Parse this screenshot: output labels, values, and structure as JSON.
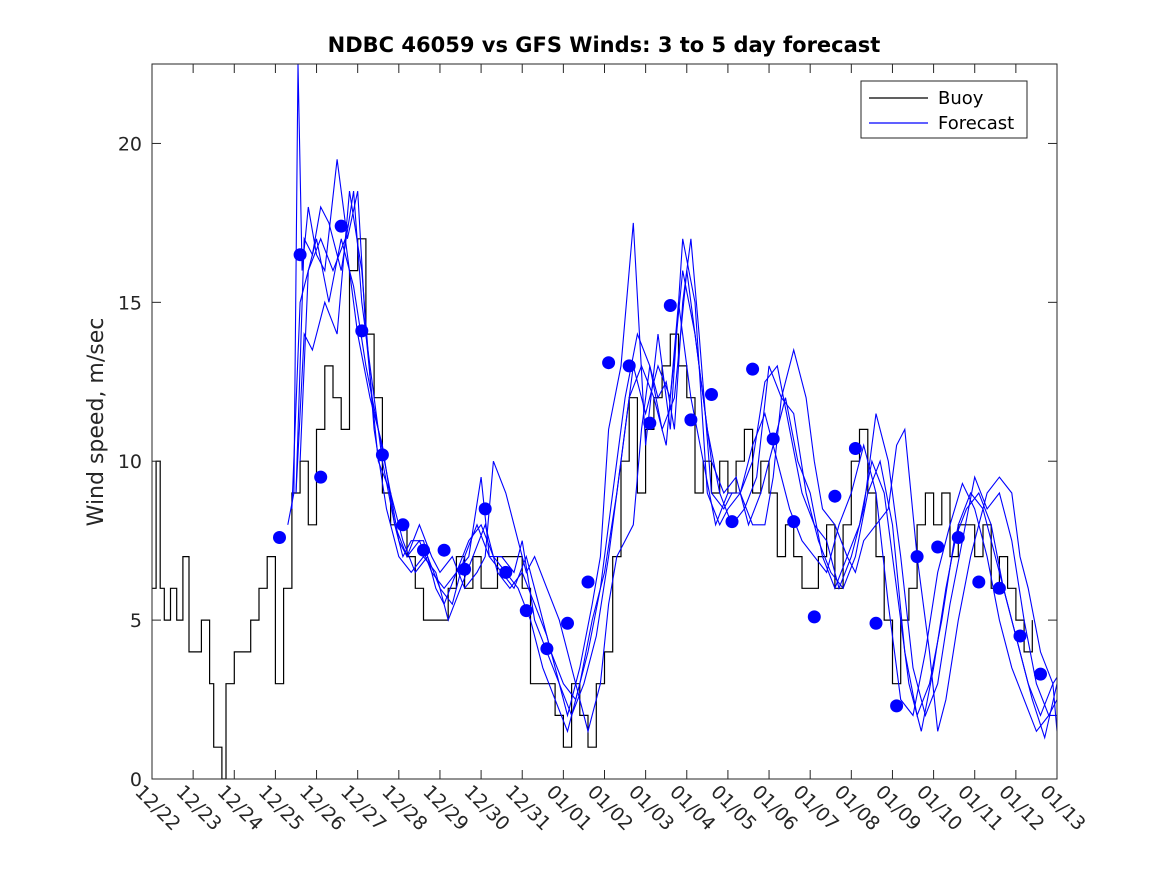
{
  "chart_data": {
    "type": "line",
    "title": "NDBC 46059 vs GFS Winds: 3 to 5 day forecast",
    "xlabel": "",
    "ylabel": "Wind speed, m/sec",
    "xlim": [
      0,
      22
    ],
    "ylim": [
      0,
      22.5
    ],
    "x_tick_labels": [
      "12/22",
      "12/23",
      "12/24",
      "12/25",
      "12/26",
      "12/27",
      "12/28",
      "12/29",
      "12/30",
      "12/31",
      "01/01",
      "01/02",
      "01/03",
      "01/04",
      "01/05",
      "01/06",
      "01/07",
      "01/08",
      "01/09",
      "01/10",
      "01/11",
      "01/12",
      "01/13"
    ],
    "y_ticks": [
      0,
      5,
      10,
      15,
      20
    ],
    "legend": {
      "position": "top-right",
      "entries": [
        "Buoy",
        "Forecast"
      ]
    },
    "colors": {
      "buoy": "#000000",
      "forecast": "#0000ff",
      "markers": "#0000ff"
    },
    "grid": false,
    "buoy_series": {
      "name": "Buoy",
      "x": [
        0,
        0.1,
        0.2,
        0.3,
        0.45,
        0.6,
        0.75,
        0.9,
        1.0,
        1.2,
        1.4,
        1.5,
        1.7,
        1.8,
        2.0,
        2.2,
        2.4,
        2.6,
        2.8,
        3.0,
        3.2,
        3.4,
        3.6,
        3.8,
        4.0,
        4.2,
        4.4,
        4.6,
        4.8,
        5.0,
        5.2,
        5.4,
        5.6,
        5.8,
        6.0,
        6.2,
        6.4,
        6.6,
        6.8,
        7.0,
        7.2,
        7.4,
        7.6,
        7.8,
        8.0,
        8.2,
        8.4,
        8.6,
        8.8,
        9.0,
        9.2,
        9.4,
        9.6,
        9.8,
        10.0,
        10.2,
        10.4,
        10.6,
        10.8,
        11.0,
        11.2,
        11.4,
        11.6,
        11.8,
        12.0,
        12.2,
        12.4,
        12.6,
        12.8,
        13.0,
        13.2,
        13.4,
        13.6,
        13.8,
        14.0,
        14.2,
        14.4,
        14.6,
        14.8,
        15.0,
        15.2,
        15.4,
        15.6,
        15.8,
        16.0,
        16.2,
        16.4,
        16.6,
        16.8,
        17.0,
        17.2,
        17.4,
        17.6,
        17.8,
        18.0,
        18.2,
        18.4,
        18.6,
        18.8,
        19.0,
        19.2,
        19.4,
        19.6,
        19.8,
        20.0,
        20.2,
        20.4,
        20.6,
        20.8,
        21.0,
        21.2,
        21.4
      ],
      "y": [
        6,
        10,
        6,
        5,
        6,
        5,
        7,
        4,
        4,
        5,
        3,
        1,
        0,
        3,
        4,
        4,
        5,
        6,
        7,
        3,
        6,
        9,
        10,
        8,
        11,
        13,
        12,
        11,
        16,
        17,
        14,
        12,
        9,
        8,
        8,
        7,
        6,
        5,
        5,
        5,
        6,
        7,
        6,
        7,
        6,
        6,
        7,
        7,
        7,
        6,
        3,
        3,
        3,
        2,
        1,
        3,
        2,
        1,
        3,
        4,
        7,
        10,
        12,
        9,
        11,
        12,
        13,
        14,
        13,
        12,
        9,
        10,
        9,
        10,
        9,
        10,
        11,
        9,
        10,
        9,
        7,
        8,
        7,
        6,
        6,
        7,
        8,
        6,
        8,
        10,
        11,
        9,
        7,
        5,
        3,
        5,
        6,
        8,
        9,
        8,
        9,
        7,
        8,
        8,
        7,
        8,
        6,
        7,
        6,
        5,
        4,
        5
      ]
    },
    "forecast_series": [
      {
        "name": "Forecast",
        "x": [
          3.3,
          3.45,
          3.55,
          3.65,
          3.8,
          4.0,
          4.2,
          4.5,
          4.75,
          5.0,
          5.2,
          5.5,
          5.8,
          6.0,
          6.2,
          6.5,
          6.8,
          7.0,
          7.3,
          7.6,
          7.9,
          8.1,
          8.3,
          8.6,
          8.9,
          9.1,
          9.3,
          9.6,
          9.9,
          10.1,
          10.3,
          10.6,
          10.9,
          11.1,
          11.3,
          11.5,
          11.7,
          11.9,
          12.1,
          12.3,
          12.5,
          12.7,
          12.9,
          13.1,
          13.3,
          13.6,
          13.9,
          14.1,
          14.3,
          14.6,
          14.9,
          15.1,
          15.3,
          15.6,
          15.9,
          16.1,
          16.3,
          16.6,
          16.9,
          17.1,
          17.3,
          17.6,
          17.9,
          18.1,
          18.3,
          18.6,
          18.9,
          19.1,
          19.3,
          19.6,
          19.9,
          20.1,
          20.3,
          20.6,
          20.9,
          21.1,
          21.3,
          21.6,
          21.9,
          22.0
        ],
        "y": [
          8,
          9,
          22.5,
          16,
          18,
          16.5,
          16,
          19.5,
          17,
          18.5,
          14,
          10,
          9,
          7.5,
          7,
          8,
          7,
          6.5,
          7,
          6,
          6.5,
          7,
          10,
          9,
          7.5,
          6.5,
          7,
          6,
          5,
          4,
          3,
          1.5,
          3,
          5.5,
          7,
          7.5,
          8,
          11,
          13,
          12,
          12.5,
          11,
          15,
          17,
          14,
          9,
          8.5,
          9,
          9,
          8,
          8,
          9.5,
          12,
          13.5,
          12,
          10,
          8.5,
          8,
          7,
          6.5,
          7.5,
          8,
          8.5,
          10.5,
          11,
          7,
          4,
          1.5,
          2.5,
          5,
          7,
          8,
          9,
          9.5,
          9,
          7,
          6,
          4,
          3,
          1.5
        ]
      },
      {
        "name": "Forecast",
        "x": [
          3.5,
          3.7,
          3.9,
          4.1,
          4.3,
          4.6,
          4.9,
          5.1,
          5.3,
          5.6,
          5.9,
          6.1,
          6.3,
          6.6,
          6.9,
          7.1,
          7.4,
          7.7,
          8.0,
          8.2,
          8.5,
          8.8,
          9.0,
          9.3,
          9.6,
          9.9,
          10.1,
          10.4,
          10.7,
          10.9,
          11.1,
          11.4,
          11.7,
          12.0,
          12.3,
          12.6,
          12.9,
          13.2,
          13.5,
          13.8,
          14.0,
          14.3,
          14.6,
          14.9,
          15.2,
          15.5,
          15.8,
          16.1,
          16.4,
          16.7,
          17.0,
          17.3,
          17.6,
          17.9,
          18.2,
          18.5,
          18.8,
          19.1,
          19.4,
          19.7,
          20.0,
          20.3,
          20.6,
          20.9,
          21.2,
          21.5,
          21.8,
          22.0
        ],
        "y": [
          9,
          17,
          16.5,
          18,
          17.5,
          16,
          18.5,
          15,
          13,
          10,
          8,
          7,
          7.5,
          7.5,
          6,
          5.5,
          6.5,
          7,
          9.5,
          7,
          7,
          6.5,
          7.5,
          5,
          4,
          3,
          2,
          3.5,
          5.5,
          7,
          11,
          13,
          17.5,
          10.5,
          14,
          11,
          17,
          15,
          9,
          8,
          8.5,
          9,
          10,
          12.5,
          13,
          11,
          9,
          8,
          7.5,
          6,
          7,
          8.5,
          11.5,
          10,
          7,
          3.5,
          2,
          3,
          5.5,
          7.5,
          9.5,
          8.5,
          9,
          7.5,
          5,
          3,
          2,
          2
        ]
      },
      {
        "name": "Forecast",
        "x": [
          3.6,
          3.8,
          4.0,
          4.3,
          4.6,
          4.9,
          5.2,
          5.5,
          5.8,
          6.1,
          6.4,
          6.7,
          7.0,
          7.3,
          7.6,
          7.9,
          8.2,
          8.5,
          8.8,
          9.1,
          9.4,
          9.7,
          10.0,
          10.3,
          10.6,
          10.9,
          11.2,
          11.5,
          11.8,
          12.1,
          12.4,
          12.7,
          13.0,
          13.3,
          13.6,
          13.9,
          14.2,
          14.5,
          14.8,
          15.1,
          15.4,
          15.7,
          16.0,
          16.3,
          16.6,
          16.9,
          17.2,
          17.5,
          17.8,
          18.1,
          18.4,
          18.7,
          19.0,
          19.3,
          19.6,
          19.9,
          20.2,
          20.5,
          20.8,
          21.1,
          21.4,
          21.7,
          22.0
        ],
        "y": [
          10,
          16,
          17,
          15,
          17,
          15.5,
          13,
          11,
          9,
          7.5,
          6.5,
          7,
          6,
          5.5,
          7,
          8,
          7,
          6.5,
          6,
          7,
          5.5,
          4,
          3,
          2.5,
          4,
          6,
          9,
          12,
          14,
          13,
          11,
          12,
          16,
          13,
          10,
          9,
          9.5,
          8,
          9,
          10.5,
          12,
          10,
          9,
          7,
          6,
          7,
          8,
          10,
          9,
          6,
          3,
          1.5,
          3.5,
          6,
          8,
          9,
          8.5,
          7,
          5.5,
          4,
          2.5,
          1.3,
          3
        ]
      },
      {
        "name": "Forecast",
        "x": [
          3.4,
          3.6,
          3.8,
          4.1,
          4.4,
          4.7,
          5.0,
          5.3,
          5.6,
          5.9,
          6.2,
          6.5,
          6.8,
          7.1,
          7.4,
          7.7,
          8.0,
          8.3,
          8.6,
          8.9,
          9.2,
          9.5,
          9.8,
          10.1,
          10.4,
          10.7,
          11.0,
          11.3,
          11.6,
          11.9,
          12.2,
          12.5,
          12.8,
          13.1,
          13.4,
          13.7,
          14.0,
          14.3,
          14.6,
          14.9,
          15.2,
          15.5,
          15.8,
          16.1,
          16.4,
          16.7,
          17.0,
          17.3,
          17.6,
          17.9,
          18.2,
          18.5,
          18.8,
          19.1,
          19.4,
          19.7,
          20.0,
          20.3,
          20.6,
          20.9,
          21.2,
          21.5,
          21.8,
          22.0
        ],
        "y": [
          8.5,
          15,
          16,
          17,
          16,
          17,
          14,
          12,
          10.5,
          8,
          7,
          7.5,
          6.5,
          6,
          6.5,
          7.5,
          8,
          7,
          6.5,
          6,
          5,
          3.5,
          2.5,
          1.5,
          3,
          5,
          6.5,
          9,
          12,
          13,
          12,
          10.5,
          15,
          12,
          10,
          8,
          9,
          9,
          10.5,
          11.5,
          10,
          8.5,
          7.5,
          7,
          6.5,
          8,
          9,
          10.5,
          9,
          5.5,
          2.5,
          2,
          4,
          6.5,
          8,
          9.3,
          8.5,
          7,
          5,
          3.5,
          2.5,
          1.5,
          2,
          2.5
        ]
      },
      {
        "name": "Forecast",
        "x": [
          3.5,
          3.7,
          3.9,
          4.2,
          4.5,
          4.8,
          5.1,
          5.4,
          5.7,
          6.0,
          6.3,
          6.6,
          6.9,
          7.2,
          7.5,
          7.8,
          8.1,
          8.4,
          8.7,
          9.0,
          9.3,
          9.6,
          9.9,
          10.2,
          10.5,
          10.8,
          11.1,
          11.4,
          11.7,
          12.0,
          12.3,
          12.6,
          12.9,
          13.2,
          13.5,
          13.8,
          14.1,
          14.4,
          14.7,
          15.0,
          15.3,
          15.6,
          15.9,
          16.2,
          16.5,
          16.8,
          17.1,
          17.4,
          17.7,
          18.0,
          18.3,
          18.6,
          18.9,
          19.2,
          19.5,
          19.8,
          20.1,
          20.4,
          20.7,
          21.0,
          21.3,
          21.6,
          21.9,
          22.0
        ],
        "y": [
          9,
          14,
          13.5,
          15,
          14,
          18.5,
          16,
          11,
          8.5,
          7,
          6.5,
          7,
          6.5,
          5,
          6,
          7,
          8,
          6.5,
          6,
          6.5,
          5.5,
          4.5,
          3,
          2,
          3,
          4.5,
          7,
          10,
          13,
          11.5,
          13,
          12,
          16,
          14,
          11,
          9,
          8,
          8.5,
          9.5,
          13,
          12,
          11.5,
          9,
          7.5,
          6.5,
          6,
          7,
          9,
          10,
          8,
          4,
          2,
          3,
          5,
          7.5,
          8.5,
          9,
          8,
          6,
          4.5,
          3,
          2,
          3,
          3.2
        ]
      }
    ],
    "marker_points": {
      "name": "",
      "x": [
        3.1,
        3.6,
        4.1,
        4.6,
        5.1,
        5.6,
        6.1,
        6.6,
        7.1,
        7.6,
        8.1,
        8.6,
        9.1,
        9.6,
        10.1,
        10.6,
        11.1,
        11.6,
        12.1,
        12.6,
        13.1,
        13.6,
        14.1,
        14.6,
        15.1,
        15.6,
        16.1,
        16.6,
        17.1,
        17.6,
        18.1,
        18.6,
        19.1,
        19.6,
        20.1,
        20.6,
        21.1,
        21.6
      ],
      "y": [
        7.6,
        16.5,
        9.5,
        17.4,
        14.1,
        10.2,
        8.0,
        7.2,
        7.2,
        6.6,
        8.5,
        6.5,
        5.3,
        4.1,
        4.9,
        6.2,
        13.1,
        13.0,
        11.2,
        14.9,
        11.3,
        12.1,
        8.1,
        12.9,
        10.7,
        8.1,
        5.1,
        8.9,
        10.4,
        4.9,
        2.3,
        7.0,
        7.3,
        7.6,
        6.2,
        6.0,
        4.5,
        3.3
      ]
    }
  }
}
